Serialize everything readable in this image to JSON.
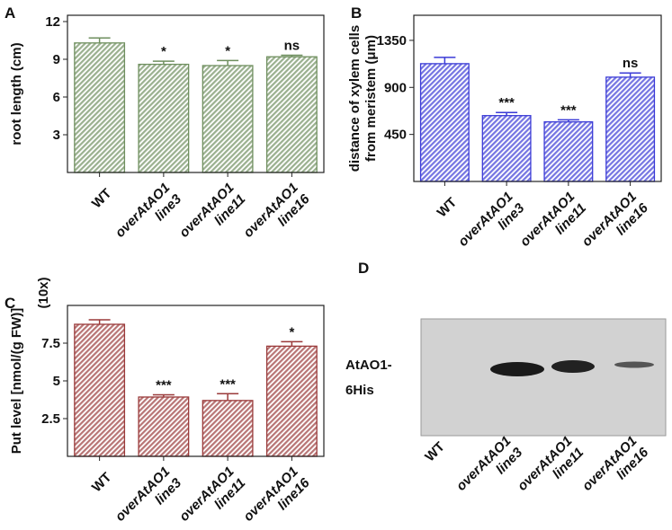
{
  "chart_data": [
    {
      "type": "bar",
      "panel": "A",
      "ylabel": "root length (cm)",
      "categories": [
        "WT",
        "overAtAO1\nline3",
        "overAtAO1\nline11",
        "overAtAO1\nline16"
      ],
      "values": [
        10.3,
        8.6,
        8.5,
        9.2
      ],
      "errors": [
        0.4,
        0.25,
        0.4,
        0.12
      ],
      "annotations": [
        null,
        "*",
        "*",
        "ns"
      ],
      "color": "#6f8f5f",
      "ylim": [
        0,
        12.5
      ],
      "yticks": [
        3,
        6,
        9,
        12
      ]
    },
    {
      "type": "bar",
      "panel": "B",
      "ylabel": "distance of xylem cells\nfrom meristem (μm)",
      "categories": [
        "WT",
        "overAtAO1\nline3",
        "overAtAO1\nline11",
        "overAtAO1\nline16"
      ],
      "values": [
        1127,
        630,
        570,
        998
      ],
      "errors": [
        60,
        30,
        20,
        40
      ],
      "annotations": [
        null,
        "***",
        "***",
        "ns"
      ],
      "color": "#3b3bd6",
      "ylim": [
        0,
        1590
      ],
      "yticks": [
        450,
        900,
        1350
      ]
    },
    {
      "type": "bar",
      "panel": "C",
      "ylabel": "Put level [nmol/(g FW)]",
      "scale_note": "(10x)",
      "categories": [
        "WT",
        "overAtAO1\nline3",
        "overAtAO1\nline11",
        "overAtAO1\nline16"
      ],
      "values": [
        8.75,
        3.93,
        3.7,
        7.3
      ],
      "errors": [
        0.3,
        0.15,
        0.45,
        0.3
      ],
      "annotations": [
        null,
        "***",
        "***",
        "*"
      ],
      "color": "#9a3a3a",
      "ylim": [
        0,
        10
      ],
      "yticks": [
        2.5,
        5,
        7.5
      ]
    }
  ],
  "blot": {
    "panel": "D",
    "band_label": "AtAO1-\n6His",
    "lanes": [
      "WT",
      "overAtAO1\nline3",
      "overAtAO1\nline11",
      "overAtAO1\nline16"
    ]
  }
}
